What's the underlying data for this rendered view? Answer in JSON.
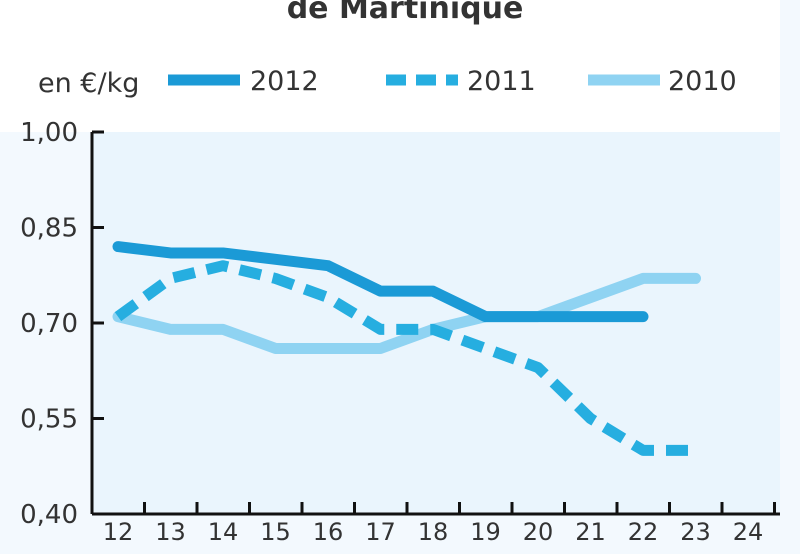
{
  "chart_data": {
    "type": "line",
    "title": "de Martinique",
    "ylabel": "en €/kg",
    "xlabel": "",
    "x": [
      12,
      13,
      14,
      15,
      16,
      17,
      18,
      19,
      20,
      21,
      22,
      23,
      24
    ],
    "x_tick_labels": [
      "12",
      "13",
      "14",
      "15",
      "16",
      "17",
      "18",
      "19",
      "20",
      "21",
      "22",
      "23",
      "24"
    ],
    "ylim": [
      0.4,
      1.0
    ],
    "y_ticks": [
      0.4,
      0.55,
      0.7,
      0.85,
      1.0
    ],
    "y_tick_labels": [
      "0,40",
      "0,55",
      "0,70",
      "0,85",
      "1,00"
    ],
    "grid": false,
    "legend_position": "top",
    "series": [
      {
        "name": "2012",
        "style": "solid",
        "color": "#1b9ad6",
        "x": [
          12,
          13,
          14,
          15,
          16,
          17,
          18,
          19,
          20,
          21,
          22
        ],
        "values": [
          0.82,
          0.81,
          0.81,
          0.8,
          0.79,
          0.75,
          0.75,
          0.71,
          0.71,
          0.71,
          0.71
        ]
      },
      {
        "name": "2011",
        "style": "dashed",
        "color": "#26aee0",
        "x": [
          12,
          13,
          14,
          15,
          16,
          17,
          18,
          19,
          20,
          21,
          22,
          23
        ],
        "values": [
          0.71,
          0.77,
          0.79,
          0.77,
          0.74,
          0.69,
          0.69,
          0.66,
          0.63,
          0.55,
          0.5,
          0.5
        ]
      },
      {
        "name": "2010",
        "style": "solid",
        "color": "#8fd3f2",
        "x": [
          12,
          13,
          14,
          15,
          16,
          17,
          18,
          19,
          20,
          21,
          22,
          23
        ],
        "values": [
          0.71,
          0.69,
          0.69,
          0.66,
          0.66,
          0.66,
          0.69,
          0.71,
          0.71,
          0.74,
          0.77,
          0.77
        ]
      }
    ]
  }
}
